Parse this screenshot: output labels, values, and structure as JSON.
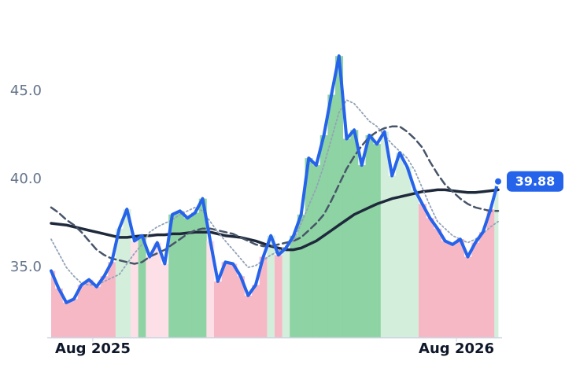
{
  "chart_data": {
    "type": "line",
    "ylim": [
      31,
      50
    ],
    "yticks": [
      {
        "value": 35,
        "label": "35.0"
      },
      {
        "value": 40,
        "label": "40.0"
      },
      {
        "value": 45,
        "label": "45.0"
      }
    ],
    "xlim": [
      0,
      59
    ],
    "xticks": [
      {
        "value": 5.5,
        "label": "Aug 2025"
      },
      {
        "value": 53.5,
        "label": "Aug 2026"
      }
    ],
    "shading": {
      "up_strong": "#8ed3a3",
      "up_weak": "#d4eedc",
      "down_strong": "#f7b8c6",
      "down_weak": "#fde0e7"
    },
    "series": [
      {
        "color": "#2563eb",
        "dash": "solid",
        "values": [
          34.8,
          33.8,
          33.0,
          33.2,
          34.0,
          34.3,
          33.9,
          34.5,
          35.3,
          37.2,
          38.3,
          36.5,
          36.8,
          35.6,
          36.4,
          35.2,
          38.0,
          38.2,
          37.8,
          38.1,
          38.9,
          36.5,
          34.2,
          35.3,
          35.2,
          34.5,
          33.4,
          34.0,
          35.6,
          36.8,
          35.7,
          36.1,
          36.8,
          38.0,
          41.2,
          40.8,
          42.5,
          44.8,
          47.0,
          42.3,
          42.8,
          40.8,
          42.5,
          42.0,
          42.7,
          40.2,
          41.5,
          40.7,
          39.4,
          38.6,
          37.8,
          37.2,
          36.5,
          36.3,
          36.6,
          35.6,
          36.4,
          37.0,
          38.3,
          39.88
        ]
      },
      {
        "color": "#94a3b8",
        "dash": "dotted",
        "values": [
          36.6,
          35.8,
          35.0,
          34.5,
          34.1,
          34.0,
          34.0,
          34.2,
          34.4,
          34.6,
          35.2,
          35.8,
          36.3,
          37.0,
          37.3,
          37.5,
          37.7,
          38.0,
          38.2,
          38.4,
          38.2,
          37.6,
          37.0,
          36.5,
          36.0,
          35.5,
          35.0,
          35.1,
          35.4,
          35.7,
          35.9,
          36.2,
          36.5,
          37.5,
          38.5,
          39.5,
          40.8,
          42.3,
          43.8,
          44.5,
          44.3,
          43.8,
          43.3,
          43.0,
          42.5,
          42.0,
          41.6,
          41.2,
          40.5,
          39.5,
          38.5,
          37.6,
          37.2,
          36.8,
          36.6,
          36.4,
          36.6,
          36.9,
          37.3,
          37.6
        ]
      },
      {
        "color": "#475569",
        "dash": "dashed",
        "values": [
          38.4,
          38.1,
          37.7,
          37.4,
          37.0,
          36.5,
          36.0,
          35.7,
          35.5,
          35.4,
          35.3,
          35.2,
          35.3,
          35.6,
          35.8,
          36.0,
          36.3,
          36.6,
          36.9,
          37.1,
          37.2,
          37.2,
          37.1,
          37.0,
          36.9,
          36.7,
          36.5,
          36.3,
          36.2,
          36.2,
          36.3,
          36.4,
          36.5,
          36.7,
          37.1,
          37.5,
          38.0,
          38.8,
          39.7,
          40.6,
          41.3,
          41.9,
          42.4,
          42.7,
          42.9,
          43.0,
          43.0,
          42.7,
          42.3,
          41.8,
          41.0,
          40.3,
          39.7,
          39.3,
          38.9,
          38.6,
          38.4,
          38.3,
          38.2,
          38.2
        ]
      },
      {
        "color": "#1e293b",
        "dash": "solid",
        "values": [
          37.5,
          37.45,
          37.4,
          37.3,
          37.2,
          37.1,
          37.0,
          36.9,
          36.8,
          36.7,
          36.7,
          36.75,
          36.8,
          36.8,
          36.85,
          36.85,
          36.9,
          36.9,
          36.95,
          37.0,
          37.0,
          37.0,
          36.9,
          36.8,
          36.75,
          36.7,
          36.6,
          36.5,
          36.35,
          36.2,
          36.1,
          36.0,
          36.0,
          36.1,
          36.3,
          36.5,
          36.8,
          37.1,
          37.4,
          37.7,
          38.0,
          38.2,
          38.4,
          38.6,
          38.75,
          38.9,
          39.0,
          39.1,
          39.2,
          39.3,
          39.35,
          39.4,
          39.4,
          39.35,
          39.3,
          39.25,
          39.25,
          39.3,
          39.35,
          39.4
        ]
      }
    ]
  }
}
